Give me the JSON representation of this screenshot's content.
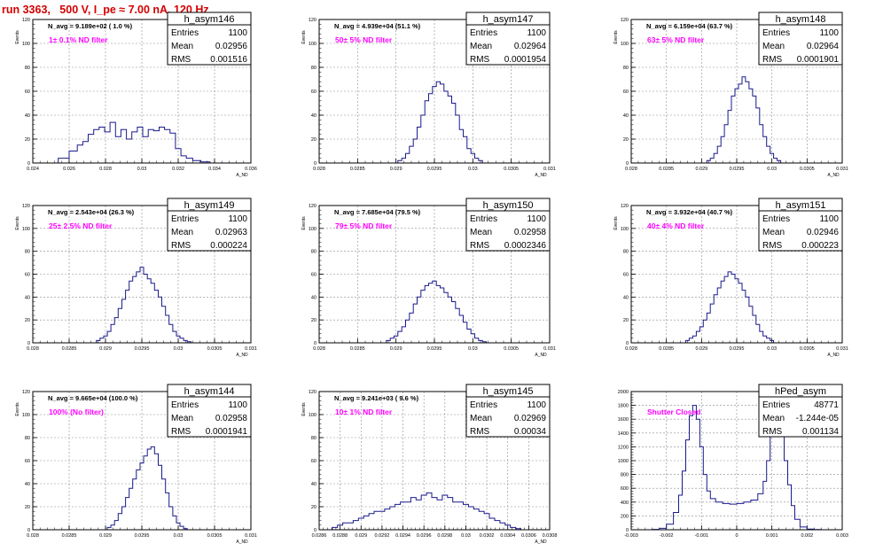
{
  "header": {
    "title": "run 3363,   500 V, I_pe ≈ 7.00 nA, 120 Hz"
  },
  "colors": {
    "histogram": "#1a1a8c",
    "annotation": "#ff00ff",
    "title": "#d40000",
    "axis": "#000000",
    "grid": "#8c8c8c"
  },
  "chart_data": [
    {
      "type": "bar",
      "name": "h_asym146",
      "stats": [
        [
          "Entries",
          "1100"
        ],
        [
          "Mean",
          "0.02956"
        ],
        [
          "RMS",
          "0.001516"
        ]
      ],
      "navg": "N_avg = 9.189e+02 ( 1.0 %)",
      "filter": "1± 0.1% ND filter",
      "ylabel": "Events",
      "xlabel": "A_ND",
      "xlim": [
        0.024,
        0.036
      ],
      "ylim": [
        0,
        120
      ],
      "xticks": [
        "0.024",
        "0.026",
        "0.028",
        "0.03",
        "0.032",
        "0.034",
        "0.036"
      ],
      "yticks": [
        "0",
        "20",
        "40",
        "60",
        "80",
        "100",
        "120"
      ],
      "x": [
        0.0257,
        0.0263,
        0.0266,
        0.0269,
        0.0272,
        0.0275,
        0.0278,
        0.0281,
        0.0284,
        0.0287,
        0.029,
        0.0293,
        0.0296,
        0.0299,
        0.0302,
        0.0305,
        0.0308,
        0.0311,
        0.0314,
        0.0317,
        0.032,
        0.0323,
        0.0326,
        0.033,
        0.0335
      ],
      "values": [
        4,
        10,
        15,
        18,
        24,
        28,
        30,
        26,
        34,
        22,
        28,
        20,
        26,
        30,
        22,
        28,
        27,
        30,
        28,
        25,
        12,
        6,
        4,
        2,
        1
      ]
    },
    {
      "type": "bar",
      "name": "h_asym147",
      "stats": [
        [
          "Entries",
          "1100"
        ],
        [
          "Mean",
          "0.02964"
        ],
        [
          "RMS",
          "0.0001954"
        ]
      ],
      "navg": "N_avg = 4.939e+04 (51.1 %)",
      "filter": "50± 5% ND filter",
      "ylabel": "Events",
      "xlabel": "A_ND",
      "xlim": [
        0.028,
        0.031
      ],
      "ylim": [
        0,
        120
      ],
      "xticks": [
        "0.028",
        "0.0285",
        "0.029",
        "0.0295",
        "0.03",
        "0.0305",
        "0.031"
      ],
      "yticks": [
        "0",
        "20",
        "40",
        "60",
        "80",
        "100",
        "120"
      ],
      "x": [
        0.02905,
        0.0291,
        0.02915,
        0.0292,
        0.02925,
        0.0293,
        0.02935,
        0.0294,
        0.02945,
        0.0295,
        0.02955,
        0.0296,
        0.02965,
        0.0297,
        0.02975,
        0.0298,
        0.02985,
        0.0299,
        0.02995,
        0.03,
        0.03005,
        0.0301
      ],
      "values": [
        2,
        4,
        8,
        14,
        20,
        30,
        40,
        52,
        58,
        64,
        68,
        66,
        60,
        56,
        50,
        40,
        28,
        22,
        12,
        8,
        4,
        2
      ]
    },
    {
      "type": "bar",
      "name": "h_asym148",
      "stats": [
        [
          "Entries",
          "1100"
        ],
        [
          "Mean",
          "0.02964"
        ],
        [
          "RMS",
          "0.0001901"
        ]
      ],
      "navg": "N_avg = 6.159e+04 (63.7 %)",
      "filter": "63± 5% ND filter",
      "ylabel": "Events",
      "xlabel": "A_ND",
      "xlim": [
        0.028,
        0.031
      ],
      "ylim": [
        0,
        120
      ],
      "xticks": [
        "0.028",
        "0.0285",
        "0.029",
        "0.0295",
        "0.03",
        "0.0305",
        "0.031"
      ],
      "yticks": [
        "0",
        "20",
        "40",
        "60",
        "80",
        "100",
        "120"
      ],
      "x": [
        0.0291,
        0.02915,
        0.0292,
        0.02925,
        0.0293,
        0.02935,
        0.0294,
        0.02945,
        0.0295,
        0.02955,
        0.0296,
        0.02965,
        0.0297,
        0.02975,
        0.0298,
        0.02985,
        0.0299,
        0.02995,
        0.03,
        0.03005,
        0.0301
      ],
      "values": [
        2,
        4,
        8,
        14,
        22,
        32,
        44,
        56,
        62,
        66,
        72,
        68,
        62,
        56,
        46,
        32,
        22,
        14,
        8,
        4,
        2
      ]
    },
    {
      "type": "bar",
      "name": "h_asym149",
      "stats": [
        [
          "Entries",
          "1100"
        ],
        [
          "Mean",
          "0.02963"
        ],
        [
          "RMS",
          "0.000224"
        ]
      ],
      "navg": "N_avg = 2.543e+04 (26.3 %)",
      "filter": "25± 2.5% ND filter",
      "ylabel": "Events",
      "xlabel": "A_ND",
      "xlim": [
        0.028,
        0.031
      ],
      "ylim": [
        0,
        120
      ],
      "xticks": [
        "0.028",
        "0.0285",
        "0.029",
        "0.0295",
        "0.03",
        "0.0305",
        "0.031"
      ],
      "yticks": [
        "0",
        "20",
        "40",
        "60",
        "80",
        "100",
        "120"
      ],
      "x": [
        0.0289,
        0.02895,
        0.029,
        0.02905,
        0.0291,
        0.02915,
        0.0292,
        0.02925,
        0.0293,
        0.02935,
        0.0294,
        0.02945,
        0.0295,
        0.02955,
        0.0296,
        0.02965,
        0.0297,
        0.02975,
        0.0298,
        0.02985,
        0.0299,
        0.02995,
        0.03,
        0.03005,
        0.0301,
        0.03015
      ],
      "values": [
        2,
        4,
        6,
        10,
        16,
        22,
        30,
        38,
        46,
        54,
        58,
        62,
        66,
        60,
        56,
        52,
        46,
        40,
        32,
        24,
        16,
        10,
        6,
        4,
        2,
        1
      ]
    },
    {
      "type": "bar",
      "name": "h_asym150",
      "stats": [
        [
          "Entries",
          "1100"
        ],
        [
          "Mean",
          "0.02958"
        ],
        [
          "RMS",
          "0.0002346"
        ]
      ],
      "navg": "N_avg = 7.685e+04 (79.5 %)",
      "filter": "79± 5% ND filter",
      "ylabel": "Events",
      "xlabel": "A_ND",
      "xlim": [
        0.028,
        0.031
      ],
      "ylim": [
        0,
        120
      ],
      "xticks": [
        "0.028",
        "0.0285",
        "0.029",
        "0.0295",
        "0.03",
        "0.0305",
        "0.031"
      ],
      "yticks": [
        "0",
        "20",
        "40",
        "60",
        "80",
        "100",
        "120"
      ],
      "x": [
        0.0289,
        0.02895,
        0.029,
        0.02905,
        0.0291,
        0.02915,
        0.0292,
        0.02925,
        0.0293,
        0.02935,
        0.0294,
        0.02945,
        0.0295,
        0.02955,
        0.0296,
        0.02965,
        0.0297,
        0.02975,
        0.0298,
        0.02985,
        0.0299,
        0.02995,
        0.03,
        0.03005,
        0.0301,
        0.03015
      ],
      "values": [
        2,
        4,
        6,
        10,
        14,
        20,
        26,
        34,
        40,
        46,
        50,
        52,
        54,
        50,
        48,
        44,
        40,
        36,
        30,
        24,
        18,
        12,
        8,
        4,
        2,
        1
      ]
    },
    {
      "type": "bar",
      "name": "h_asym151",
      "stats": [
        [
          "Entries",
          "1100"
        ],
        [
          "Mean",
          "0.02946"
        ],
        [
          "RMS",
          "0.000223"
        ]
      ],
      "navg": "N_avg = 3.932e+04 (40.7 %)",
      "filter": "40± 4% ND filter",
      "ylabel": "Events",
      "xlabel": "A_ND",
      "xlim": [
        0.028,
        0.031
      ],
      "ylim": [
        0,
        120
      ],
      "xticks": [
        "0.028",
        "0.0285",
        "0.029",
        "0.0295",
        "0.03",
        "0.0305",
        "0.031"
      ],
      "yticks": [
        "0",
        "20",
        "40",
        "60",
        "80",
        "100",
        "120"
      ],
      "x": [
        0.0288,
        0.02885,
        0.0289,
        0.02895,
        0.029,
        0.02905,
        0.0291,
        0.02915,
        0.0292,
        0.02925,
        0.0293,
        0.02935,
        0.0294,
        0.02945,
        0.0295,
        0.02955,
        0.0296,
        0.02965,
        0.0297,
        0.02975,
        0.0298,
        0.02985,
        0.0299,
        0.02995,
        0.03
      ],
      "values": [
        2,
        4,
        6,
        10,
        14,
        20,
        26,
        34,
        42,
        48,
        54,
        58,
        62,
        60,
        56,
        52,
        46,
        40,
        32,
        24,
        16,
        10,
        6,
        4,
        2
      ]
    },
    {
      "type": "bar",
      "name": "h_asym144",
      "stats": [
        [
          "Entries",
          "1100"
        ],
        [
          "Mean",
          "0.02958"
        ],
        [
          "RMS",
          "0.0001941"
        ]
      ],
      "navg": "N_avg = 9.665e+04 (100.0 %)",
      "filter": "100% (No filter)",
      "ylabel": "Events",
      "xlabel": "A_ND",
      "xlim": [
        0.028,
        0.031
      ],
      "ylim": [
        0,
        120
      ],
      "xticks": [
        "0.028",
        "0.0285",
        "0.029",
        "0.0295",
        "0.03",
        "0.0305",
        "0.031"
      ],
      "yticks": [
        "0",
        "20",
        "40",
        "60",
        "80",
        "100",
        "120"
      ],
      "x": [
        0.02905,
        0.0291,
        0.02915,
        0.0292,
        0.02925,
        0.0293,
        0.02935,
        0.0294,
        0.02945,
        0.0295,
        0.02955,
        0.0296,
        0.02965,
        0.0297,
        0.02975,
        0.0298,
        0.02985,
        0.0299,
        0.02995,
        0.03,
        0.03005,
        0.0301
      ],
      "values": [
        2,
        4,
        8,
        14,
        20,
        28,
        36,
        44,
        52,
        58,
        64,
        70,
        72,
        66,
        56,
        44,
        32,
        20,
        12,
        6,
        3,
        1
      ]
    },
    {
      "type": "bar",
      "name": "h_asym145",
      "stats": [
        [
          "Entries",
          "1100"
        ],
        [
          "Mean",
          "0.02969"
        ],
        [
          "RMS",
          "0.00034"
        ]
      ],
      "navg": "N_avg = 9.241e+03 ( 9.6 %)",
      "filter": "10± 1% ND filter",
      "ylabel": "Events",
      "xlabel": "A_ND",
      "xlim": [
        0.0286,
        0.0308
      ],
      "ylim": [
        0,
        120
      ],
      "xticks": [
        "0.0286",
        "0.0288",
        "0.029",
        "0.0292",
        "0.0294",
        "0.0296",
        "0.0298",
        "0.03",
        "0.0302",
        "0.0304",
        "0.0306",
        "0.0308"
      ],
      "yticks": [
        "0",
        "20",
        "40",
        "60",
        "80",
        "100",
        "120"
      ],
      "x": [
        0.02875,
        0.0288,
        0.02885,
        0.0289,
        0.02895,
        0.029,
        0.02905,
        0.0291,
        0.02915,
        0.0292,
        0.02925,
        0.0293,
        0.02935,
        0.0294,
        0.02945,
        0.0295,
        0.02955,
        0.0296,
        0.02965,
        0.0297,
        0.02975,
        0.0298,
        0.02985,
        0.0299,
        0.02995,
        0.03,
        0.03005,
        0.0301,
        0.03015,
        0.0302,
        0.03025,
        0.0303,
        0.03035,
        0.0304,
        0.03045,
        0.0305
      ],
      "values": [
        2,
        4,
        6,
        6,
        8,
        10,
        12,
        14,
        16,
        16,
        18,
        20,
        22,
        24,
        24,
        28,
        26,
        30,
        32,
        28,
        26,
        30,
        28,
        24,
        24,
        22,
        20,
        18,
        16,
        14,
        10,
        8,
        6,
        4,
        2,
        1
      ]
    },
    {
      "type": "bar",
      "name": "hPed_asym",
      "stats": [
        [
          "Entries",
          "48771"
        ],
        [
          "Mean",
          "-1.244e-05"
        ],
        [
          "RMS",
          "0.001134"
        ]
      ],
      "navg": "",
      "filter": "Shutter Closed",
      "ylabel": "",
      "xlabel": "",
      "xlim": [
        -0.003,
        0.003
      ],
      "ylim": [
        0,
        2000
      ],
      "xticks": [
        "-0.003",
        "-0.002",
        "-0.001",
        "0",
        "0.001",
        "0.002",
        "0.003"
      ],
      "yticks": [
        "0",
        "200",
        "400",
        "600",
        "800",
        "1000",
        "1200",
        "1400",
        "1600",
        "1800",
        "2000"
      ],
      "x": [
        -0.0023,
        -0.0021,
        -0.0019,
        -0.0017,
        -0.0016,
        -0.0015,
        -0.0014,
        -0.0013,
        -0.0012,
        -0.0011,
        -0.001,
        -0.0009,
        -0.0008,
        -0.0007,
        -0.0005,
        -0.0003,
        -0.0001,
        0.0001,
        0.0003,
        0.0005,
        0.0007,
        0.0008,
        0.0009,
        0.001,
        0.0011,
        0.0012,
        0.0013,
        0.0014,
        0.0015,
        0.0016,
        0.0017,
        0.0019,
        0.0021,
        0.0023
      ],
      "values": [
        5,
        20,
        80,
        250,
        500,
        850,
        1300,
        1650,
        1800,
        1600,
        1200,
        800,
        560,
        450,
        400,
        380,
        370,
        380,
        400,
        430,
        520,
        700,
        1000,
        1500,
        1800,
        1750,
        1400,
        1000,
        650,
        350,
        150,
        40,
        10,
        2
      ]
    }
  ]
}
